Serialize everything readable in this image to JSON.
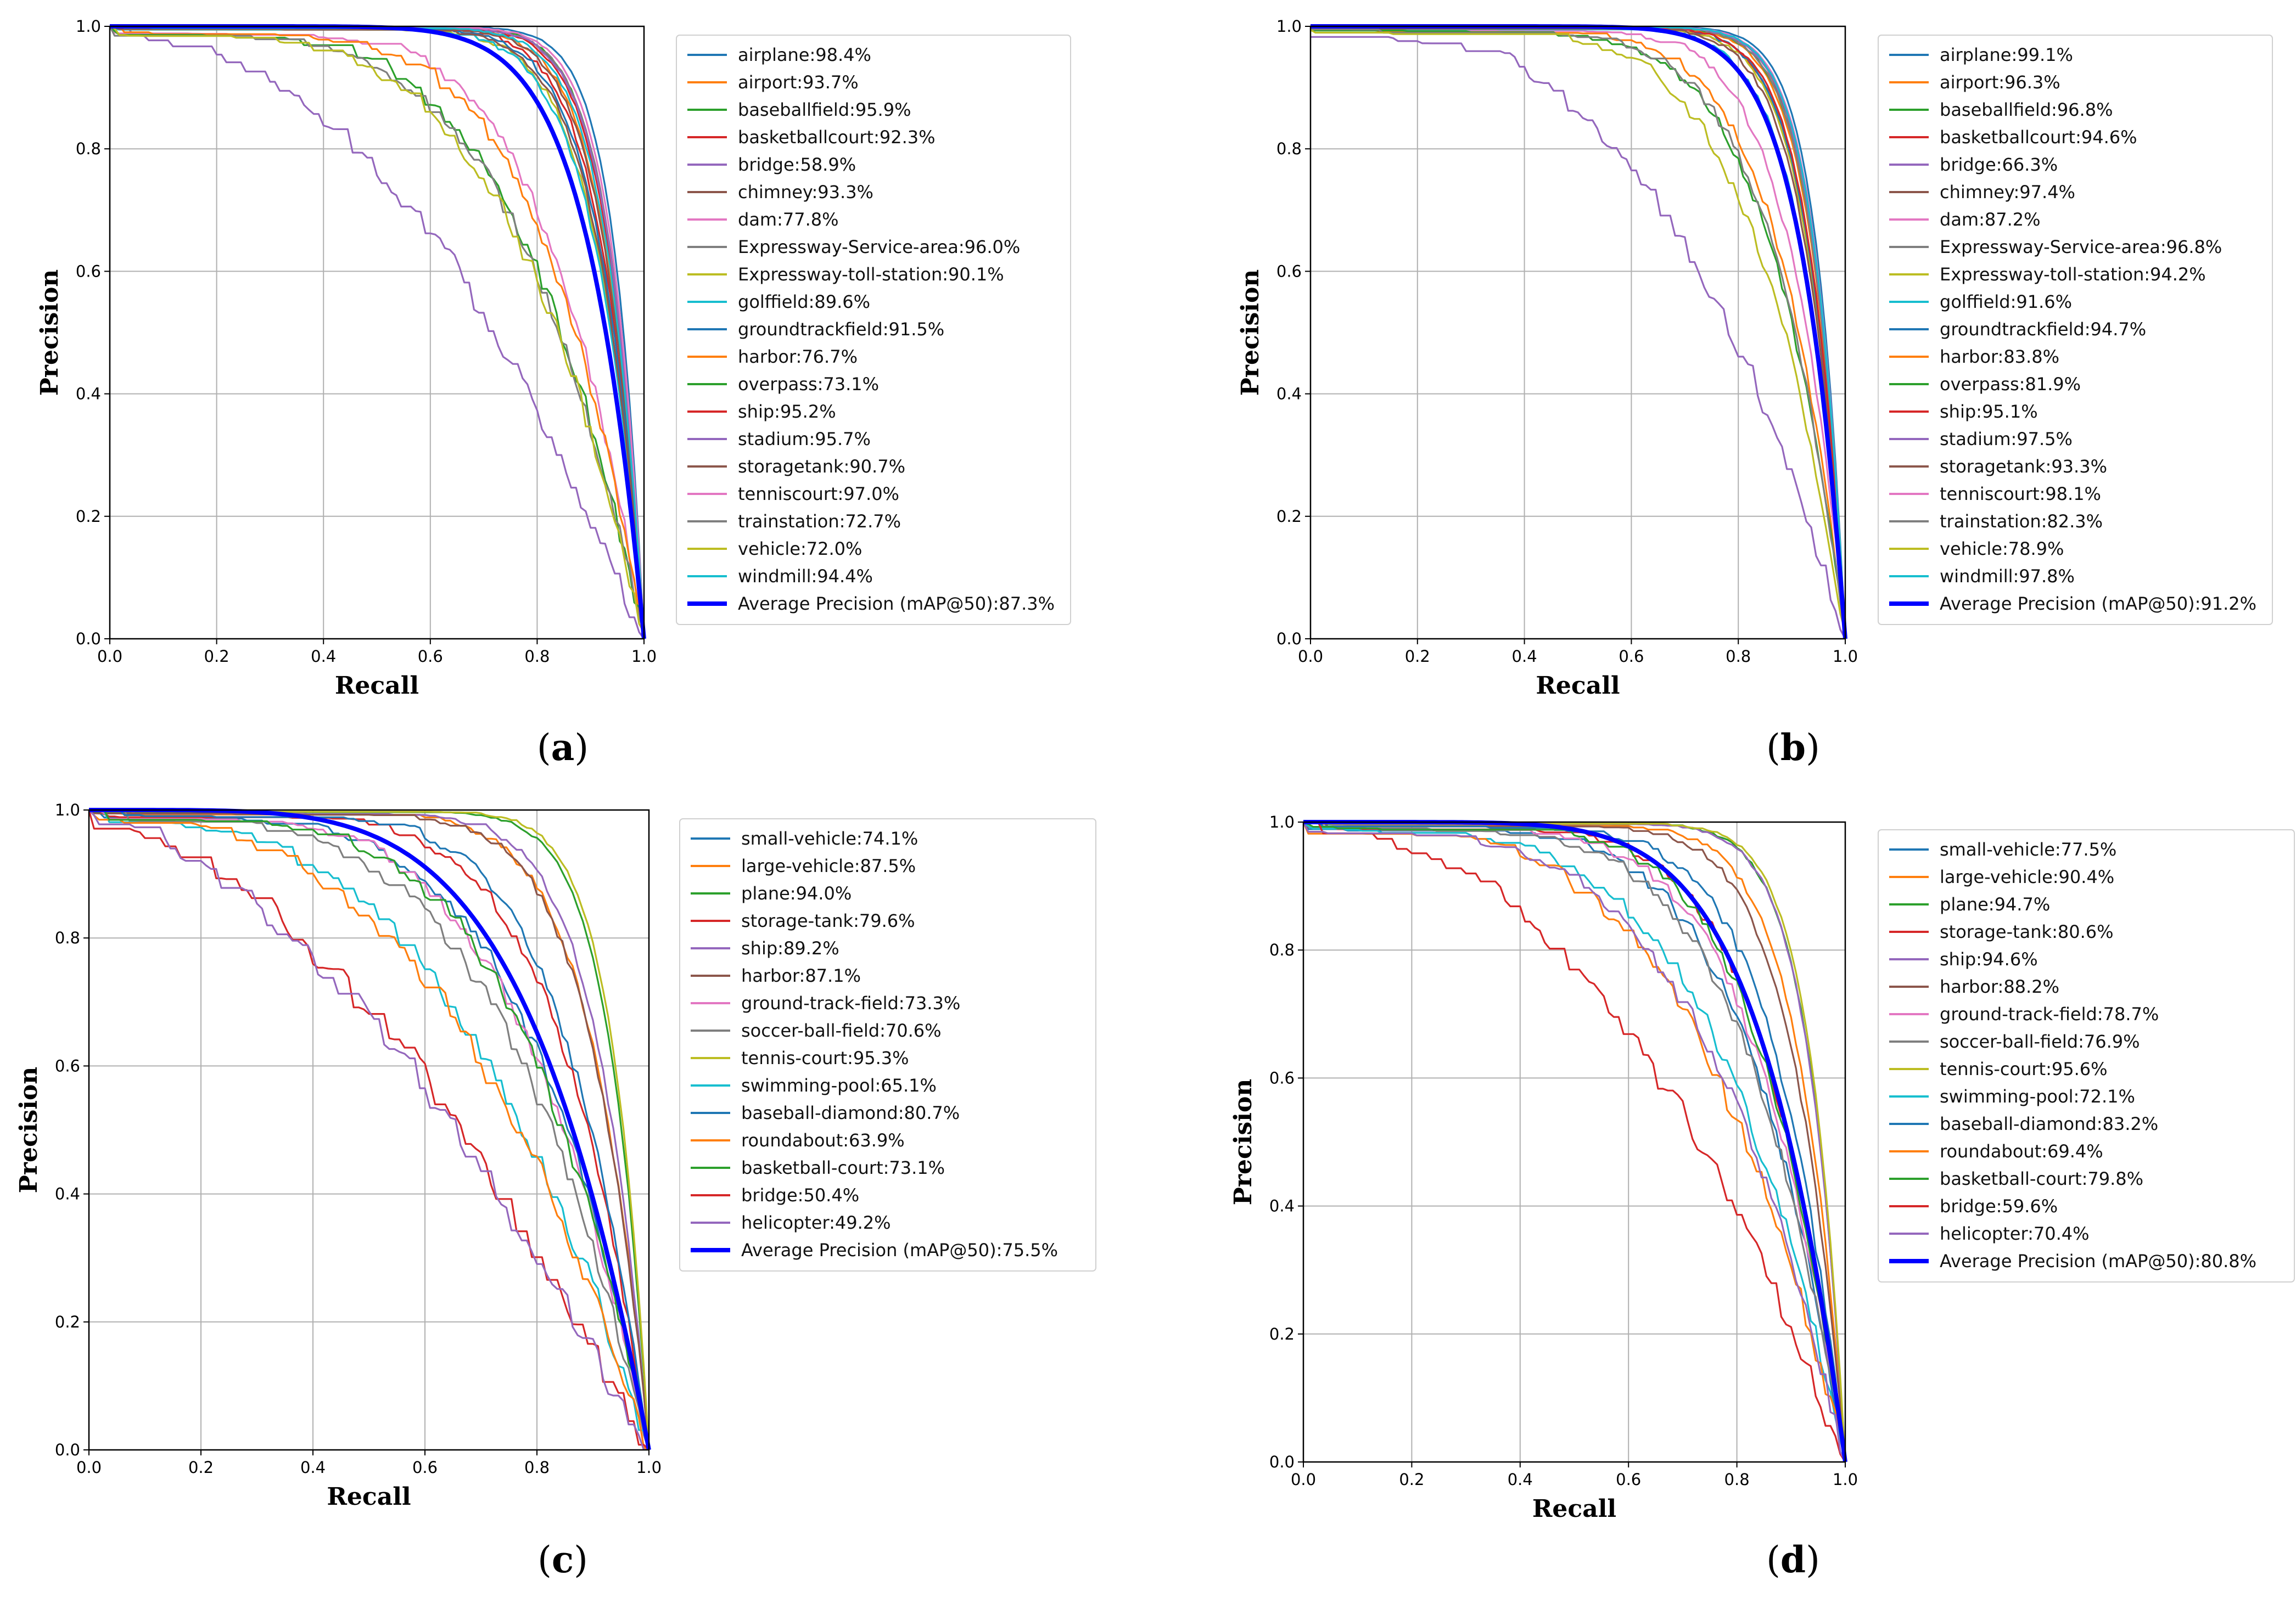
{
  "palette": [
    "#1f77b4",
    "#ff7f0e",
    "#2ca02c",
    "#d62728",
    "#9467bd",
    "#8c564b",
    "#e377c2",
    "#7f7f7f",
    "#bcbd22",
    "#17becf"
  ],
  "mean_color": "#0000ff",
  "chart_data": [
    {
      "type": "line",
      "panel_label": "a",
      "xlabel": "Recall",
      "ylabel": "Precision",
      "xlim": [
        0,
        1
      ],
      "ylim": [
        0,
        1
      ],
      "xticks": [
        "0.0",
        "0.2",
        "0.4",
        "0.6",
        "0.8",
        "1.0"
      ],
      "yticks": [
        "0.0",
        "0.2",
        "0.4",
        "0.6",
        "0.8",
        "1.0"
      ],
      "grid": true,
      "legend_position": "right-outside",
      "series": [
        {
          "name": "airplane",
          "ap": 98.4,
          "label": "airplane:98.4%"
        },
        {
          "name": "airport",
          "ap": 93.7,
          "label": "airport:93.7%"
        },
        {
          "name": "baseballfield",
          "ap": 95.9,
          "label": "baseballfield:95.9%"
        },
        {
          "name": "basketballcourt",
          "ap": 92.3,
          "label": "basketballcourt:92.3%"
        },
        {
          "name": "bridge",
          "ap": 58.9,
          "label": "bridge:58.9%"
        },
        {
          "name": "chimney",
          "ap": 93.3,
          "label": "chimney:93.3%"
        },
        {
          "name": "dam",
          "ap": 77.8,
          "label": "dam:77.8%"
        },
        {
          "name": "Expressway-Service-area",
          "ap": 96.0,
          "label": "Expressway-Service-area:96.0%"
        },
        {
          "name": "Expressway-toll-station",
          "ap": 90.1,
          "label": "Expressway-toll-station:90.1%"
        },
        {
          "name": "golffield",
          "ap": 89.6,
          "label": "golffield:89.6%"
        },
        {
          "name": "groundtrackfield",
          "ap": 91.5,
          "label": "groundtrackfield:91.5%"
        },
        {
          "name": "harbor",
          "ap": 76.7,
          "label": "harbor:76.7%"
        },
        {
          "name": "overpass",
          "ap": 73.1,
          "label": "overpass:73.1%"
        },
        {
          "name": "ship",
          "ap": 95.2,
          "label": "ship:95.2%"
        },
        {
          "name": "stadium",
          "ap": 95.7,
          "label": "stadium:95.7%"
        },
        {
          "name": "storagetank",
          "ap": 90.7,
          "label": "storagetank:90.7%"
        },
        {
          "name": "tenniscourt",
          "ap": 97.0,
          "label": "tenniscourt:97.0%"
        },
        {
          "name": "trainstation",
          "ap": 72.7,
          "label": "trainstation:72.7%"
        },
        {
          "name": "vehicle",
          "ap": 72.0,
          "label": "vehicle:72.0%"
        },
        {
          "name": "windmill",
          "ap": 94.4,
          "label": "windmill:94.4%"
        }
      ],
      "mean": {
        "name": "Average Precision (mAP@50)",
        "ap": 87.3,
        "label": "Average Precision (mAP@50):87.3%"
      }
    },
    {
      "type": "line",
      "panel_label": "b",
      "xlabel": "Recall",
      "ylabel": "Precision",
      "xlim": [
        0,
        1
      ],
      "ylim": [
        0,
        1
      ],
      "xticks": [
        "0.0",
        "0.2",
        "0.4",
        "0.6",
        "0.8",
        "1.0"
      ],
      "yticks": [
        "0.0",
        "0.2",
        "0.4",
        "0.6",
        "0.8",
        "1.0"
      ],
      "grid": true,
      "legend_position": "right-outside",
      "series": [
        {
          "name": "airplane",
          "ap": 99.1,
          "label": "airplane:99.1%"
        },
        {
          "name": "airport",
          "ap": 96.3,
          "label": "airport:96.3%"
        },
        {
          "name": "baseballfield",
          "ap": 96.8,
          "label": "baseballfield:96.8%"
        },
        {
          "name": "basketballcourt",
          "ap": 94.6,
          "label": "basketballcourt:94.6%"
        },
        {
          "name": "bridge",
          "ap": 66.3,
          "label": "bridge:66.3%"
        },
        {
          "name": "chimney",
          "ap": 97.4,
          "label": "chimney:97.4%"
        },
        {
          "name": "dam",
          "ap": 87.2,
          "label": "dam:87.2%"
        },
        {
          "name": "Expressway-Service-area",
          "ap": 96.8,
          "label": "Expressway-Service-area:96.8%"
        },
        {
          "name": "Expressway-toll-station",
          "ap": 94.2,
          "label": "Expressway-toll-station:94.2%"
        },
        {
          "name": "golffield",
          "ap": 91.6,
          "label": "golffield:91.6%"
        },
        {
          "name": "groundtrackfield",
          "ap": 94.7,
          "label": "groundtrackfield:94.7%"
        },
        {
          "name": "harbor",
          "ap": 83.8,
          "label": "harbor:83.8%"
        },
        {
          "name": "overpass",
          "ap": 81.9,
          "label": "overpass:81.9%"
        },
        {
          "name": "ship",
          "ap": 95.1,
          "label": "ship:95.1%"
        },
        {
          "name": "stadium",
          "ap": 97.5,
          "label": "stadium:97.5%"
        },
        {
          "name": "storagetank",
          "ap": 93.3,
          "label": "storagetank:93.3%"
        },
        {
          "name": "tenniscourt",
          "ap": 98.1,
          "label": "tenniscourt:98.1%"
        },
        {
          "name": "trainstation",
          "ap": 82.3,
          "label": "trainstation:82.3%"
        },
        {
          "name": "vehicle",
          "ap": 78.9,
          "label": "vehicle:78.9%"
        },
        {
          "name": "windmill",
          "ap": 97.8,
          "label": "windmill:97.8%"
        }
      ],
      "mean": {
        "name": "Average Precision (mAP@50)",
        "ap": 91.2,
        "label": "Average Precision (mAP@50):91.2%"
      }
    },
    {
      "type": "line",
      "panel_label": "c",
      "xlabel": "Recall",
      "ylabel": "Precision",
      "xlim": [
        0,
        1
      ],
      "ylim": [
        0,
        1
      ],
      "xticks": [
        "0.0",
        "0.2",
        "0.4",
        "0.6",
        "0.8",
        "1.0"
      ],
      "yticks": [
        "0.0",
        "0.2",
        "0.4",
        "0.6",
        "0.8",
        "1.0"
      ],
      "grid": true,
      "legend_position": "right-outside",
      "series": [
        {
          "name": "small-vehicle",
          "ap": 74.1,
          "label": "small-vehicle:74.1%"
        },
        {
          "name": "large-vehicle",
          "ap": 87.5,
          "label": "large-vehicle:87.5%"
        },
        {
          "name": "plane",
          "ap": 94.0,
          "label": "plane:94.0%"
        },
        {
          "name": "storage-tank",
          "ap": 79.6,
          "label": "storage-tank:79.6%"
        },
        {
          "name": "ship",
          "ap": 89.2,
          "label": "ship:89.2%"
        },
        {
          "name": "harbor",
          "ap": 87.1,
          "label": "harbor:87.1%"
        },
        {
          "name": "ground-track-field",
          "ap": 73.3,
          "label": "ground-track-field:73.3%"
        },
        {
          "name": "soccer-ball-field",
          "ap": 70.6,
          "label": "soccer-ball-field:70.6%"
        },
        {
          "name": "tennis-court",
          "ap": 95.3,
          "label": "tennis-court:95.3%"
        },
        {
          "name": "swimming-pool",
          "ap": 65.1,
          "label": "swimming-pool:65.1%"
        },
        {
          "name": "baseball-diamond",
          "ap": 80.7,
          "label": "baseball-diamond:80.7%"
        },
        {
          "name": "roundabout",
          "ap": 63.9,
          "label": "roundabout:63.9%"
        },
        {
          "name": "basketball-court",
          "ap": 73.1,
          "label": "basketball-court:73.1%"
        },
        {
          "name": "bridge",
          "ap": 50.4,
          "label": "bridge:50.4%"
        },
        {
          "name": "helicopter",
          "ap": 49.2,
          "label": "helicopter:49.2%"
        }
      ],
      "mean": {
        "name": "Average Precision (mAP@50)",
        "ap": 75.5,
        "label": "Average Precision (mAP@50):75.5%"
      }
    },
    {
      "type": "line",
      "panel_label": "d",
      "xlabel": "Recall",
      "ylabel": "Precision",
      "xlim": [
        0,
        1
      ],
      "ylim": [
        0,
        1
      ],
      "xticks": [
        "0.0",
        "0.2",
        "0.4",
        "0.6",
        "0.8",
        "1.0"
      ],
      "yticks": [
        "0.0",
        "0.2",
        "0.4",
        "0.6",
        "0.8",
        "1.0"
      ],
      "grid": true,
      "legend_position": "right-outside",
      "series": [
        {
          "name": "small-vehicle",
          "ap": 77.5,
          "label": "small-vehicle:77.5%"
        },
        {
          "name": "large-vehicle",
          "ap": 90.4,
          "label": "large-vehicle:90.4%"
        },
        {
          "name": "plane",
          "ap": 94.7,
          "label": "plane:94.7%"
        },
        {
          "name": "storage-tank",
          "ap": 80.6,
          "label": "storage-tank:80.6%"
        },
        {
          "name": "ship",
          "ap": 94.6,
          "label": "ship:94.6%"
        },
        {
          "name": "harbor",
          "ap": 88.2,
          "label": "harbor:88.2%"
        },
        {
          "name": "ground-track-field",
          "ap": 78.7,
          "label": "ground-track-field:78.7%"
        },
        {
          "name": "soccer-ball-field",
          "ap": 76.9,
          "label": "soccer-ball-field:76.9%"
        },
        {
          "name": "tennis-court",
          "ap": 95.6,
          "label": "tennis-court:95.6%"
        },
        {
          "name": "swimming-pool",
          "ap": 72.1,
          "label": "swimming-pool:72.1%"
        },
        {
          "name": "baseball-diamond",
          "ap": 83.2,
          "label": "baseball-diamond:83.2%"
        },
        {
          "name": "roundabout",
          "ap": 69.4,
          "label": "roundabout:69.4%"
        },
        {
          "name": "basketball-court",
          "ap": 79.8,
          "label": "basketball-court:79.8%"
        },
        {
          "name": "bridge",
          "ap": 59.6,
          "label": "bridge:59.6%"
        },
        {
          "name": "helicopter",
          "ap": 70.4,
          "label": "helicopter:70.4%"
        }
      ],
      "mean": {
        "name": "Average Precision (mAP@50)",
        "ap": 80.8,
        "label": "Average Precision (mAP@50):80.8%"
      }
    }
  ]
}
